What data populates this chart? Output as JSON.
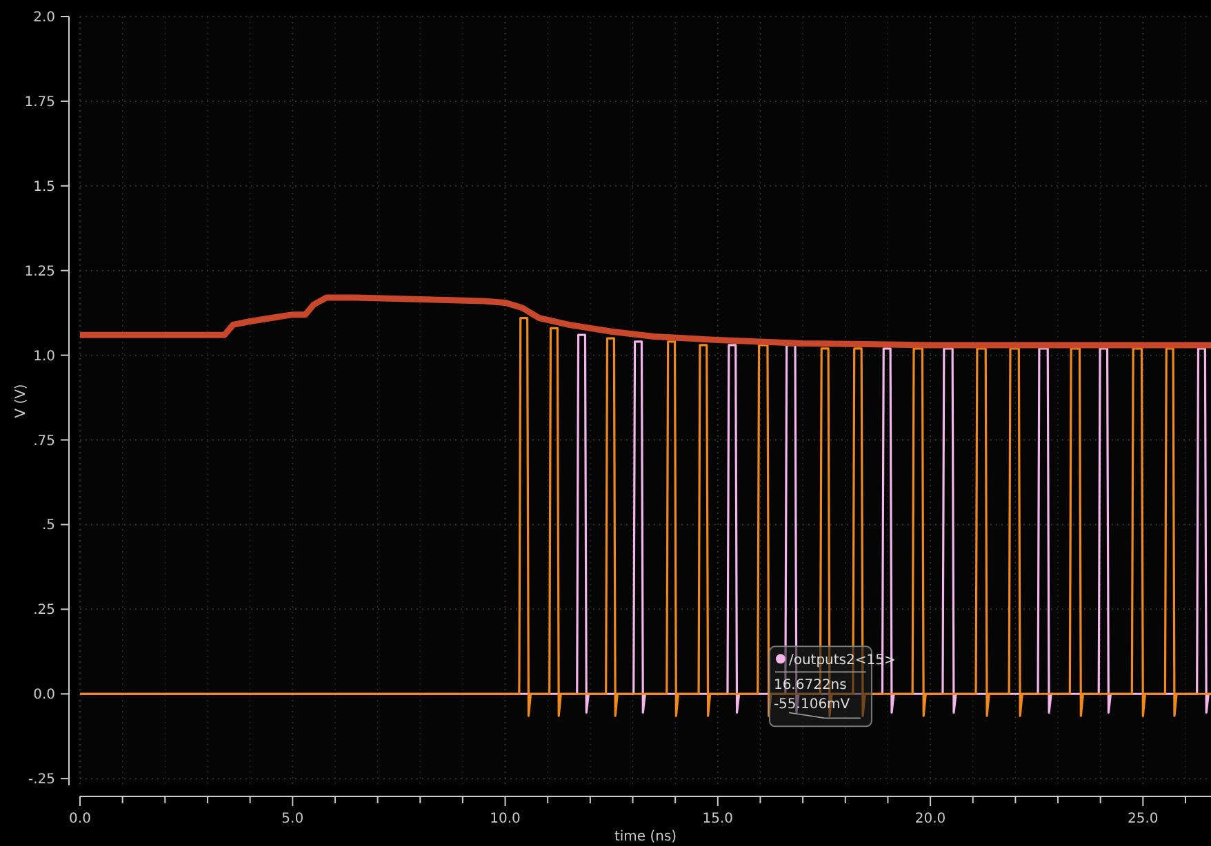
{
  "chart_data": {
    "type": "line",
    "xlabel": "time (ns)",
    "ylabel": "V (V)",
    "xlim": [
      0,
      26.6
    ],
    "ylim": [
      -0.27,
      2.0
    ],
    "xticks": [
      {
        "value": 0,
        "label": "0.0"
      },
      {
        "value": 1,
        "label": null
      },
      {
        "value": 2,
        "label": null
      },
      {
        "value": 3,
        "label": null
      },
      {
        "value": 4,
        "label": null
      },
      {
        "value": 5,
        "label": "5.0"
      },
      {
        "value": 6,
        "label": null
      },
      {
        "value": 7,
        "label": null
      },
      {
        "value": 8,
        "label": null
      },
      {
        "value": 9,
        "label": null
      },
      {
        "value": 10,
        "label": "10.0"
      },
      {
        "value": 11,
        "label": null
      },
      {
        "value": 12,
        "label": null
      },
      {
        "value": 13,
        "label": null
      },
      {
        "value": 14,
        "label": null
      },
      {
        "value": 15,
        "label": "15.0"
      },
      {
        "value": 16,
        "label": null
      },
      {
        "value": 17,
        "label": null
      },
      {
        "value": 18,
        "label": null
      },
      {
        "value": 19,
        "label": null
      },
      {
        "value": 20,
        "label": "20.0"
      },
      {
        "value": 21,
        "label": null
      },
      {
        "value": 22,
        "label": null
      },
      {
        "value": 23,
        "label": null
      },
      {
        "value": 24,
        "label": null
      },
      {
        "value": 25,
        "label": "25.0"
      },
      {
        "value": 26,
        "label": null
      }
    ],
    "yticks": [
      {
        "value": -0.25,
        "label": "-.25"
      },
      {
        "value": 0,
        "label": "0.0"
      },
      {
        "value": 0.25,
        "label": ".25"
      },
      {
        "value": 0.5,
        "label": ".5"
      },
      {
        "value": 0.75,
        "label": ".75"
      },
      {
        "value": 1.0,
        "label": "1.0"
      },
      {
        "value": 1.25,
        "label": "1.25"
      },
      {
        "value": 1.5,
        "label": "1.5"
      },
      {
        "value": 1.75,
        "label": "1.75"
      },
      {
        "value": 2.0,
        "label": "2.0"
      }
    ],
    "grid": true,
    "marker": "none",
    "line_style": "solid",
    "series": [
      {
        "color": "#f2b6ea",
        "x": [
          0,
          11.69,
          11.72,
          11.88,
          11.91,
          11.96,
          13.02,
          13.05,
          13.21,
          13.24,
          13.29,
          15.23,
          15.26,
          15.42,
          15.45,
          15.5,
          16.59,
          16.62,
          16.82,
          16.85,
          16.9,
          18.87,
          18.9,
          19.06,
          19.09,
          19.14,
          20.29,
          20.32,
          20.52,
          20.55,
          20.6,
          22.53,
          22.56,
          22.76,
          22.79,
          22.84,
          23.96,
          23.99,
          24.16,
          24.19,
          24.24,
          26.27,
          26.3,
          26.46,
          26.49,
          26.54,
          26.6
        ],
        "values": [
          0,
          0,
          1.06,
          1.06,
          -0.055,
          0,
          0,
          1.04,
          1.04,
          -0.055,
          0,
          0,
          1.03,
          1.03,
          -0.055,
          0,
          0,
          1.03,
          1.03,
          -0.055,
          0,
          0,
          1.02,
          1.02,
          -0.055,
          0,
          0,
          1.02,
          1.02,
          -0.055,
          0,
          0,
          1.02,
          1.02,
          -0.055,
          0,
          0,
          1.02,
          1.02,
          -0.055,
          0,
          0,
          1.02,
          1.02,
          -0.055,
          0,
          0
        ]
      },
      {
        "color": "#f0891c",
        "x": [
          0,
          10.33,
          10.36,
          10.52,
          10.55,
          10.6,
          11.04,
          11.07,
          11.23,
          11.26,
          11.31,
          12.37,
          12.4,
          12.56,
          12.59,
          12.64,
          13.8,
          13.83,
          13.99,
          14.02,
          14.07,
          14.55,
          14.58,
          14.74,
          14.77,
          14.82,
          15.94,
          15.97,
          16.17,
          16.2,
          16.25,
          17.41,
          17.44,
          17.6,
          17.63,
          17.68,
          18.18,
          18.21,
          18.38,
          18.41,
          18.46,
          19.58,
          19.61,
          19.81,
          19.84,
          19.89,
          21.07,
          21.1,
          21.3,
          21.33,
          21.38,
          21.85,
          21.88,
          22.08,
          22.11,
          22.16,
          23.28,
          23.31,
          23.51,
          23.54,
          23.59,
          24.74,
          24.77,
          24.97,
          25.0,
          25.05,
          25.52,
          25.55,
          25.71,
          25.74,
          25.79,
          26.6
        ],
        "values": [
          0,
          0,
          1.11,
          1.11,
          -0.065,
          0,
          0,
          1.08,
          1.08,
          -0.065,
          0,
          0,
          1.05,
          1.05,
          -0.065,
          0,
          0,
          1.04,
          1.04,
          -0.065,
          0,
          0,
          1.03,
          1.03,
          -0.065,
          0,
          0,
          1.03,
          1.03,
          -0.065,
          0,
          0,
          1.02,
          1.02,
          -0.065,
          0,
          0,
          1.02,
          1.02,
          -0.065,
          0,
          0,
          1.02,
          1.02,
          -0.065,
          0,
          0,
          1.02,
          1.02,
          -0.065,
          0,
          0,
          1.02,
          1.02,
          -0.065,
          0,
          0,
          1.02,
          1.02,
          -0.065,
          0,
          0,
          1.02,
          1.02,
          -0.065,
          0,
          0,
          1.02,
          1.02,
          -0.065,
          0,
          0
        ]
      },
      {
        "color": "#c9472b",
        "x": [
          0,
          3.4,
          3.6,
          4.0,
          4.5,
          5.0,
          5.3,
          5.5,
          5.8,
          6.5,
          8,
          9.5,
          10.0,
          10.4,
          10.8,
          11.5,
          12.5,
          13.5,
          15,
          17,
          20,
          23,
          26.6
        ],
        "values": [
          1.06,
          1.06,
          1.09,
          1.1,
          1.11,
          1.12,
          1.12,
          1.15,
          1.17,
          1.17,
          1.165,
          1.16,
          1.155,
          1.14,
          1.11,
          1.09,
          1.07,
          1.055,
          1.045,
          1.035,
          1.03,
          1.03,
          1.03
        ]
      }
    ],
    "annotations": [
      {
        "text": "/outputs2<15>\n16.6722ns\n-55.106mV",
        "x": 16.6722,
        "y": -0.055106
      }
    ]
  }
}
